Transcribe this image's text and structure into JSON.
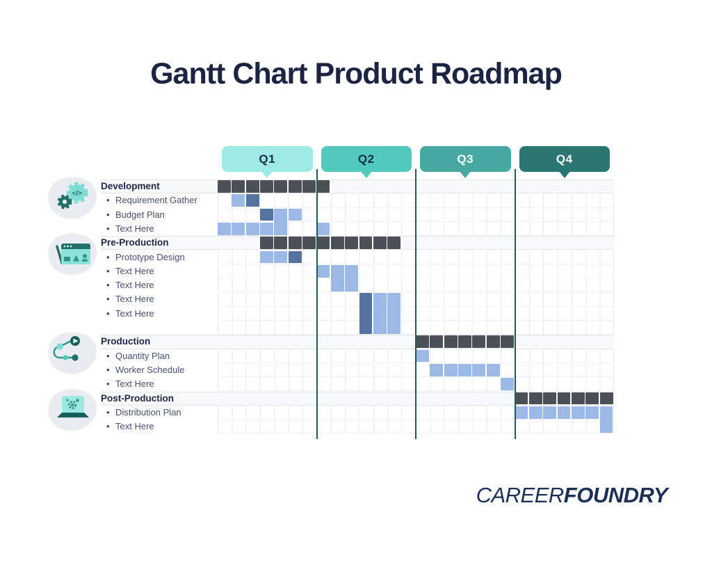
{
  "title": "Gantt Chart Product Roadmap",
  "logo": {
    "part1": "CAREER",
    "part2": "FOUNDRY"
  },
  "colors": {
    "title_text": "#1d2342",
    "section_text": "#1e2845",
    "task_text": "#475074",
    "bar_dark": "#4b5056",
    "bar_light": "#9cb8e4",
    "bar_accent": "#54739e",
    "quarter_line": "#1e5a57",
    "grid_line": "#e8ebef",
    "icon_blob": "#e9edf1",
    "icon_teal_light": "#7fdcd2",
    "icon_teal_dark": "#1f6f6b"
  },
  "chart_data": {
    "type": "gantt",
    "title": "Gantt Chart Product Roadmap",
    "columns_per_quarter": 7,
    "total_columns": 28,
    "legend": "none",
    "quarters": [
      {
        "label": "Q1",
        "color": "#9debe4",
        "text_color": "#1d2b50"
      },
      {
        "label": "Q2",
        "color": "#52c9bd",
        "text_color": "#1d2b50"
      },
      {
        "label": "Q3",
        "color": "#46a8a0",
        "text_color": "#ffffff"
      },
      {
        "label": "Q4",
        "color": "#2a7673",
        "text_color": "#ffffff"
      }
    ],
    "rows": [
      {
        "label": "Development",
        "kind": "section",
        "icon": "development-icon",
        "bars": [
          {
            "start": 1,
            "span": 8,
            "color": "dark"
          }
        ]
      },
      {
        "label": "Requirement Gather",
        "kind": "task",
        "bars": [
          {
            "start": 2,
            "span": 1,
            "color": "light"
          },
          {
            "start": 3,
            "span": 1,
            "color": "accent"
          }
        ]
      },
      {
        "label": "Budget Plan",
        "kind": "task",
        "bars": [
          {
            "start": 4,
            "span": 1,
            "color": "accent"
          },
          {
            "start": 5,
            "span": 1,
            "color": "light",
            "row_span": 2
          },
          {
            "start": 6,
            "span": 1,
            "color": "light"
          }
        ]
      },
      {
        "label": "Text Here",
        "kind": "task",
        "bars": [
          {
            "start": 1,
            "span": 4,
            "color": "light"
          },
          {
            "start": 8,
            "span": 1,
            "color": "light"
          }
        ]
      },
      {
        "label": "Pre-Production",
        "kind": "section",
        "icon": "preproduction-icon",
        "bars": [
          {
            "start": 4,
            "span": 10,
            "color": "dark"
          }
        ]
      },
      {
        "label": "Prototype Design",
        "kind": "task",
        "bars": [
          {
            "start": 4,
            "span": 2,
            "color": "light"
          },
          {
            "start": 6,
            "span": 1,
            "color": "accent"
          }
        ]
      },
      {
        "label": "Text Here",
        "kind": "task",
        "bars": [
          {
            "start": 8,
            "span": 1,
            "color": "light"
          },
          {
            "start": 9,
            "span": 2,
            "color": "light",
            "row_span": 2
          }
        ]
      },
      {
        "label": "Text Here",
        "kind": "task",
        "bars": []
      },
      {
        "label": "Text Here",
        "kind": "task",
        "bars": [
          {
            "start": 11,
            "span": 1,
            "color": "accent",
            "row_span": 3
          },
          {
            "start": 12,
            "span": 2,
            "color": "light",
            "row_span": 3
          }
        ]
      },
      {
        "label": "Text Here",
        "kind": "task",
        "bars": []
      },
      {
        "label": "",
        "kind": "spacer",
        "bars": []
      },
      {
        "label": "Production",
        "kind": "section",
        "icon": "production-icon",
        "bars": [
          {
            "start": 15,
            "span": 7,
            "color": "dark"
          }
        ]
      },
      {
        "label": "Quantity Plan",
        "kind": "task",
        "bars": [
          {
            "start": 15,
            "span": 1,
            "color": "light"
          }
        ]
      },
      {
        "label": "Worker Schedule",
        "kind": "task",
        "bars": [
          {
            "start": 16,
            "span": 5,
            "color": "light"
          }
        ]
      },
      {
        "label": "Text Here",
        "kind": "task",
        "bars": [
          {
            "start": 21,
            "span": 1,
            "color": "light"
          }
        ]
      },
      {
        "label": "Post-Production",
        "kind": "section",
        "icon": "postproduction-icon",
        "bars": [
          {
            "start": 22,
            "span": 7,
            "color": "dark"
          }
        ]
      },
      {
        "label": "Distribution Plan",
        "kind": "task",
        "bars": [
          {
            "start": 22,
            "span": 6,
            "color": "light"
          },
          {
            "start": 28,
            "span": 1,
            "color": "light",
            "row_span": 2
          }
        ]
      },
      {
        "label": "Text Here",
        "kind": "task",
        "bars": []
      }
    ]
  }
}
